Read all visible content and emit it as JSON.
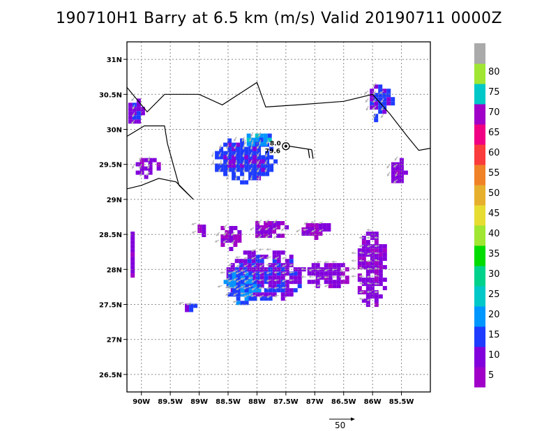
{
  "title": "190710H1 Barry at 6.5 km (m/s) Valid 20190711 0000Z",
  "map": {
    "lon_range": [
      -90.25,
      -85.0
    ],
    "lat_range": [
      26.25,
      31.25
    ],
    "lon_ticks": [
      {
        "value": -90.0,
        "label": "90W"
      },
      {
        "value": -89.5,
        "label": "89.5W"
      },
      {
        "value": -89.0,
        "label": "89W"
      },
      {
        "value": -88.5,
        "label": "88.5W"
      },
      {
        "value": -88.0,
        "label": "88W"
      },
      {
        "value": -87.5,
        "label": "87.5W"
      },
      {
        "value": -87.0,
        "label": "87W"
      },
      {
        "value": -86.5,
        "label": "86.5W"
      },
      {
        "value": -86.0,
        "label": "86W"
      },
      {
        "value": -85.5,
        "label": "85.5W"
      }
    ],
    "lat_ticks": [
      {
        "value": 31.0,
        "label": "31N"
      },
      {
        "value": 30.5,
        "label": "30.5N"
      },
      {
        "value": 30.0,
        "label": "30N"
      },
      {
        "value": 29.5,
        "label": "29.5N"
      },
      {
        "value": 29.0,
        "label": "29N"
      },
      {
        "value": 28.5,
        "label": "28.5N"
      },
      {
        "value": 28.0,
        "label": "28N"
      },
      {
        "value": 27.5,
        "label": "27.5N"
      },
      {
        "value": 27.0,
        "label": "27N"
      },
      {
        "value": 26.5,
        "label": "26.5N"
      }
    ],
    "grid": true,
    "coastline": [
      [
        -90.25,
        30.6
      ],
      [
        -89.9,
        30.25
      ],
      [
        -89.6,
        30.5
      ],
      [
        -89.0,
        30.5
      ],
      [
        -88.6,
        30.35
      ],
      [
        -88.0,
        30.67
      ],
      [
        -87.85,
        30.32
      ],
      [
        -87.3,
        30.35
      ],
      [
        -86.5,
        30.4
      ],
      [
        -86.0,
        30.5
      ],
      [
        -85.7,
        30.22
      ],
      [
        -85.4,
        29.9
      ],
      [
        -85.2,
        29.7
      ],
      [
        -85.0,
        29.73
      ]
    ],
    "delta_outline": [
      [
        -90.25,
        29.9
      ],
      [
        -89.95,
        30.05
      ],
      [
        -89.6,
        30.05
      ],
      [
        -89.55,
        29.8
      ],
      [
        -89.45,
        29.5
      ],
      [
        -89.35,
        29.2
      ],
      [
        -89.1,
        29.0
      ],
      [
        -89.4,
        29.25
      ],
      [
        -89.7,
        29.3
      ],
      [
        -90.0,
        29.2
      ],
      [
        -90.25,
        29.15
      ]
    ],
    "storm": {
      "lon": -87.5,
      "lat": 29.76,
      "label_1": "8.0",
      "label_2": "79.6"
    },
    "wind_key": {
      "speed": 50,
      "label": "50"
    }
  },
  "colorbar": {
    "colors": [
      "#a000c8",
      "#8200dc",
      "#1e3cff",
      "#0096ff",
      "#00c8c8",
      "#00d28c",
      "#00dc00",
      "#a0e632",
      "#e6dc32",
      "#e6af2d",
      "#f08228",
      "#fa3c3c",
      "#f00082",
      "#a000c8",
      "#00c8c8",
      "#a0e632",
      "#aaaaaa"
    ],
    "labels": [
      "5",
      "10",
      "15",
      "20",
      "25",
      "30",
      "35",
      "40",
      "45",
      "50",
      "55",
      "60",
      "65",
      "70",
      "75",
      "80"
    ]
  },
  "wind_field": {
    "units": "m/s",
    "regions": [
      {
        "lon": -88.25,
        "lat": 29.6,
        "rx": 0.55,
        "ry": 0.33,
        "speed": 12,
        "dir": 250
      },
      {
        "lon": -88.0,
        "lat": 29.88,
        "rx": 0.25,
        "ry": 0.12,
        "speed": 18,
        "dir": 250
      },
      {
        "lon": -89.95,
        "lat": 29.5,
        "rx": 0.22,
        "ry": 0.15,
        "speed": 6,
        "dir": 240
      },
      {
        "lon": -90.15,
        "lat": 30.3,
        "rx": 0.15,
        "ry": 0.2,
        "speed": 10,
        "dir": 240
      },
      {
        "lon": -85.9,
        "lat": 30.42,
        "rx": 0.22,
        "ry": 0.28,
        "speed": 11,
        "dir": 230
      },
      {
        "lon": -85.6,
        "lat": 29.45,
        "rx": 0.15,
        "ry": 0.2,
        "speed": 6,
        "dir": 230
      },
      {
        "lon": -87.9,
        "lat": 27.95,
        "rx": 0.7,
        "ry": 0.38,
        "speed": 9,
        "dir": 200
      },
      {
        "lon": -88.3,
        "lat": 27.78,
        "rx": 0.35,
        "ry": 0.25,
        "speed": 15,
        "dir": 200
      },
      {
        "lon": -86.05,
        "lat": 28.05,
        "rx": 0.28,
        "ry": 0.55,
        "speed": 6,
        "dir": 180
      },
      {
        "lon": -86.8,
        "lat": 27.95,
        "rx": 0.4,
        "ry": 0.2,
        "speed": 6,
        "dir": 190
      },
      {
        "lon": -87.8,
        "lat": 28.6,
        "rx": 0.3,
        "ry": 0.15,
        "speed": 5,
        "dir": 220
      },
      {
        "lon": -88.5,
        "lat": 28.5,
        "rx": 0.2,
        "ry": 0.18,
        "speed": 5,
        "dir": 220
      },
      {
        "lon": -87.0,
        "lat": 28.6,
        "rx": 0.3,
        "ry": 0.12,
        "speed": 5,
        "dir": 200
      },
      {
        "lon": -90.2,
        "lat": 28.2,
        "rx": 0.06,
        "ry": 0.4,
        "speed": 6,
        "dir": 200
      },
      {
        "lon": -89.0,
        "lat": 28.6,
        "rx": 0.1,
        "ry": 0.1,
        "speed": 5,
        "dir": 210
      },
      {
        "lon": -89.2,
        "lat": 27.5,
        "rx": 0.12,
        "ry": 0.07,
        "speed": 10,
        "dir": 210
      }
    ]
  }
}
